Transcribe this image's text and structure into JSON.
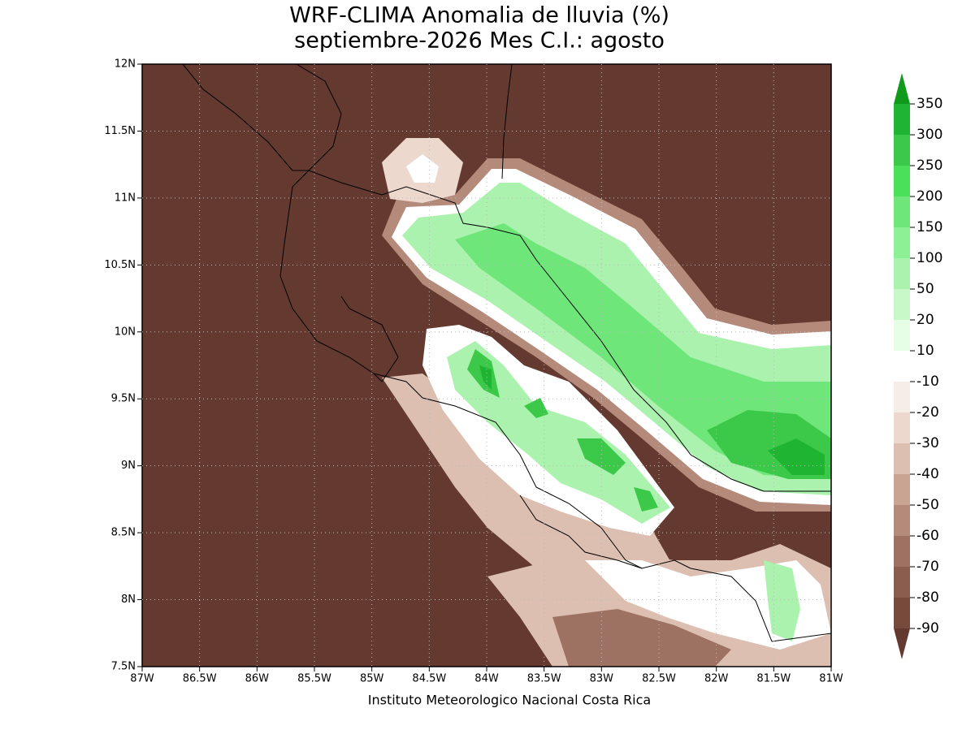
{
  "title": [
    "WRF-CLIMA Anomalia de lluvia (%)",
    "septiembre-2026 Mes C.I.: agosto"
  ],
  "x_axis": {
    "ticks": [
      "87W",
      "86.5W",
      "86W",
      "85.5W",
      "85W",
      "84.5W",
      "84W",
      "83.5W",
      "83W",
      "82.5W",
      "82W",
      "81.5W",
      "81W"
    ]
  },
  "y_axis": {
    "ticks": [
      "7.5N",
      "8N",
      "8.5N",
      "9N",
      "9.5N",
      "10N",
      "10.5N",
      "11N",
      "11.5N",
      "12N"
    ]
  },
  "colorbar": {
    "levels": [
      350,
      300,
      250,
      200,
      150,
      100,
      50,
      20,
      10,
      -10,
      -20,
      -30,
      -40,
      -50,
      -60,
      -70,
      -80,
      -90
    ],
    "colors": [
      "#0f9a1c",
      "#1fb432",
      "#3cc94a",
      "#4be05a",
      "#6fe67a",
      "#8ef095",
      "#aaf2ae",
      "#c8f8c8",
      "#e6fde6",
      "#ffffff",
      "#f6eee6",
      "#ecd8cc",
      "#dcbfb0",
      "#c9a393",
      "#b48a7a",
      "#9e7262",
      "#8a5d4e",
      "#764a3d",
      "#643a30"
    ]
  },
  "footer": "Instituto Meteorologico Nacional Costa Rica"
}
